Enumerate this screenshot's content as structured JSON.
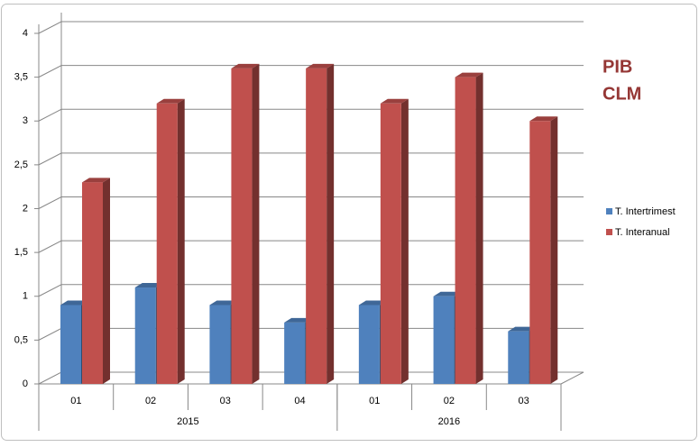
{
  "chart_data": {
    "type": "bar3d",
    "title_lines": [
      "PIB",
      "CLM"
    ],
    "groups": [
      {
        "name": "2015",
        "categories": [
          "01",
          "02",
          "03",
          "04"
        ]
      },
      {
        "name": "2016",
        "categories": [
          "01",
          "02",
          "03"
        ]
      }
    ],
    "series": [
      {
        "name": "T. Intertrimest",
        "color": "#4f81bd",
        "values": [
          0.9,
          1.1,
          0.9,
          0.7,
          0.9,
          1.0,
          0.6
        ]
      },
      {
        "name": "T. Interanual",
        "color": "#c0504d",
        "values": [
          2.3,
          3.2,
          3.6,
          3.6,
          3.2,
          3.5,
          3.0
        ]
      }
    ],
    "ylim": [
      0,
      4
    ],
    "yticks": [
      0,
      {
        "value": 0.5,
        "label": "0,5"
      },
      1,
      {
        "value": 1.5,
        "label": "1,5"
      },
      2,
      {
        "value": 2.5,
        "label": "2,5"
      },
      3,
      {
        "value": 3.5,
        "label": "3,5"
      },
      4
    ],
    "grid": true,
    "legend": "right"
  }
}
